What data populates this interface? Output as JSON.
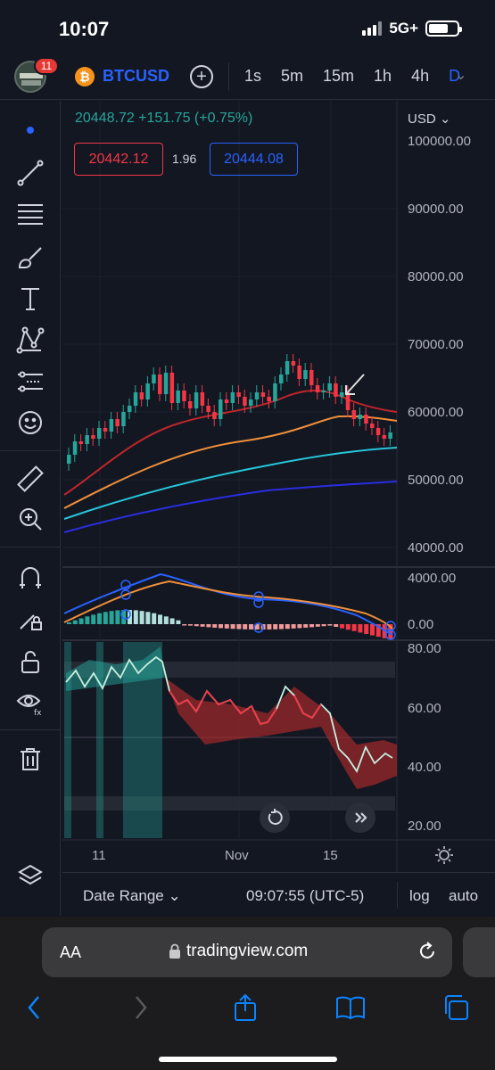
{
  "status": {
    "time": "10:07",
    "network": "5G+"
  },
  "toolbar": {
    "notif_count": "11",
    "symbol": "BTCUSD",
    "intervals": [
      "1s",
      "5m",
      "15m",
      "1h",
      "4h",
      "D"
    ],
    "active_interval": "D"
  },
  "left_tools": [
    "dot-icon",
    "trendline-icon",
    "fib-icon",
    "brush-icon",
    "text-icon",
    "pattern-icon",
    "prediction-icon",
    "emoji-icon",
    "ruler-icon",
    "zoom-in-icon",
    "magnet-icon",
    "lock-draw-icon",
    "unlock-icon",
    "eye-icon",
    "trash-icon",
    "layers-icon"
  ],
  "chart": {
    "price_header": "20448.72 +151.75 (+0.75%)",
    "bid": "20442.12",
    "spread": "1.96",
    "ask": "20444.08",
    "currency": "USD"
  },
  "chart_data": {
    "type": "candlestick",
    "price_axis": [
      "100000.00",
      "90000.00",
      "80000.00",
      "70000.00",
      "60000.00",
      "50000.00",
      "40000.00"
    ],
    "macd_axis": [
      "4000.00",
      "0.00"
    ],
    "rsi_axis": [
      "80.00",
      "60.00",
      "40.00",
      "20.00"
    ],
    "time_axis": [
      "11",
      "Nov",
      "15"
    ],
    "log_scale": false
  },
  "bottom": {
    "date_range": "Date Range",
    "clock": "09:07:55 (UTC-5)",
    "log": "log",
    "auto": "auto"
  },
  "browser": {
    "aa": "AA",
    "url": "tradingview.com"
  },
  "colors": {
    "up": "#26a69a",
    "down": "#f23645",
    "accent": "#2962ff",
    "bg": "#131722"
  }
}
